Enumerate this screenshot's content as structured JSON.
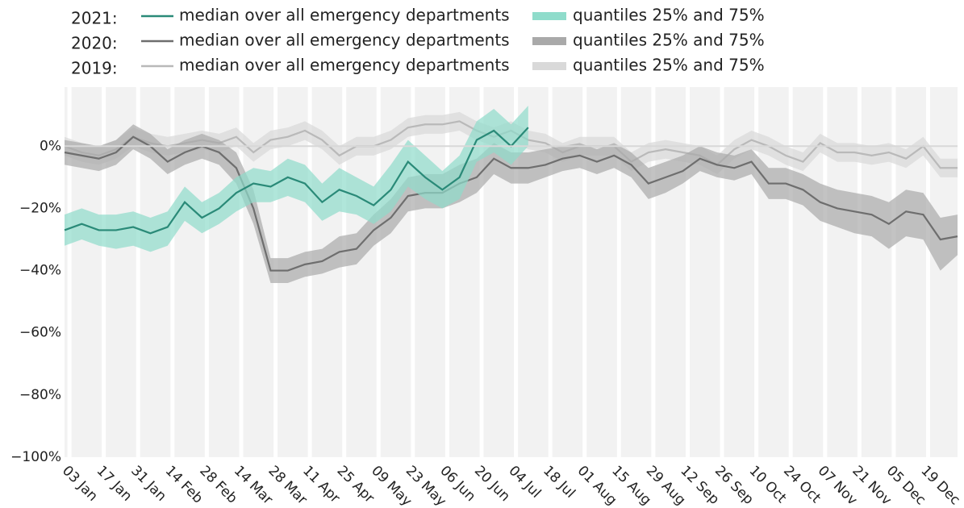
{
  "chart_data": {
    "type": "line",
    "x": [
      "01 Jan",
      "08 Jan",
      "15 Jan",
      "22 Jan",
      "29 Jan",
      "05 Feb",
      "12 Feb",
      "19 Feb",
      "26 Feb",
      "05 Mar",
      "12 Mar",
      "19 Mar",
      "26 Mar",
      "02 Apr",
      "09 Apr",
      "16 Apr",
      "23 Apr",
      "30 Apr",
      "07 May",
      "14 May",
      "21 May",
      "28 May",
      "04 Jun",
      "11 Jun",
      "18 Jun",
      "25 Jun",
      "02 Jul",
      "09 Jul",
      "16 Jul",
      "23 Jul",
      "30 Jul",
      "06 Aug",
      "13 Aug",
      "20 Aug",
      "27 Aug",
      "03 Sep",
      "10 Sep",
      "17 Sep",
      "24 Sep",
      "01 Oct",
      "08 Oct",
      "15 Oct",
      "22 Oct",
      "29 Oct",
      "05 Nov",
      "12 Nov",
      "19 Nov",
      "26 Nov",
      "03 Dec",
      "10 Dec",
      "17 Dec",
      "24 Dec",
      "31 Dec"
    ],
    "xlim": [
      "01 Jan",
      "31 Dec"
    ],
    "xticks": [
      "03 Jan",
      "17 Jan",
      "31 Jan",
      "14 Feb",
      "28 Feb",
      "14 Mar",
      "28 Mar",
      "11 Apr",
      "25 Apr",
      "09 May",
      "23 May",
      "06 Jun",
      "20 Jun",
      "04 Jul",
      "18 Jul",
      "01 Aug",
      "15 Aug",
      "29 Aug",
      "12 Sep",
      "26 Sep",
      "10 Oct",
      "24 Oct",
      "07 Nov",
      "21 Nov",
      "05 Dec",
      "19 Dec"
    ],
    "ylim": [
      -100,
      19
    ],
    "yticks": [
      {
        "value": 0,
        "label": "0%"
      },
      {
        "value": -20,
        "label": "−20%"
      },
      {
        "value": -40,
        "label": "−40%"
      },
      {
        "value": -60,
        "label": "−60%"
      },
      {
        "value": -80,
        "label": "−80%"
      },
      {
        "value": -100,
        "label": "−100%"
      }
    ],
    "grid": "x",
    "zeroline": true,
    "series": [
      {
        "group": "2021:",
        "name": "median over all emergency departments",
        "color": "#2a8a78",
        "band_name": "quantiles 25% and 75%",
        "band_color": "#8fdccb",
        "values": [
          -27,
          -25,
          -27,
          -27,
          -26,
          -28,
          -26,
          -18,
          -23,
          -20,
          -15,
          -12,
          -13,
          -10,
          -12,
          -18,
          -14,
          -16,
          -19,
          -14,
          -5,
          -10,
          -14,
          -10,
          2,
          5,
          0,
          6,
          null,
          null,
          null,
          null,
          null,
          null,
          null,
          null,
          null,
          null,
          null,
          null,
          null,
          null,
          null,
          null,
          null,
          null,
          null,
          null,
          null,
          null,
          null,
          null,
          null
        ],
        "lower": [
          -32,
          -30,
          -32,
          -33,
          -32,
          -34,
          -32,
          -24,
          -28,
          -25,
          -21,
          -18,
          -18,
          -16,
          -18,
          -24,
          -21,
          -22,
          -25,
          -21,
          -13,
          -17,
          -20,
          -17,
          -5,
          -2,
          -6,
          0,
          null,
          null,
          null,
          null,
          null,
          null,
          null,
          null,
          null,
          null,
          null,
          null,
          null,
          null,
          null,
          null,
          null,
          null,
          null,
          null,
          null,
          null,
          null,
          null,
          null
        ],
        "upper": [
          -22,
          -20,
          -22,
          -22,
          -21,
          -23,
          -21,
          -13,
          -18,
          -15,
          -10,
          -7,
          -8,
          -4,
          -6,
          -12,
          -7,
          -10,
          -13,
          -6,
          2,
          -3,
          -8,
          -3,
          8,
          12,
          7,
          13,
          null,
          null,
          null,
          null,
          null,
          null,
          null,
          null,
          null,
          null,
          null,
          null,
          null,
          null,
          null,
          null,
          null,
          null,
          null,
          null,
          null,
          null,
          null,
          null,
          null
        ]
      },
      {
        "group": "2020:",
        "name": "median over all emergency departments",
        "color": "#6e6e6e",
        "band_name": "quantiles 25% and 75%",
        "band_color": "#a9a9a9",
        "values": [
          -2,
          -3,
          -4,
          -2,
          3,
          0,
          -5,
          -2,
          0,
          -2,
          -7,
          -20,
          -40,
          -40,
          -38,
          -37,
          -34,
          -33,
          -27,
          -23,
          -16,
          -15,
          -15,
          -12,
          -10,
          -4,
          -7,
          -7,
          -6,
          -4,
          -3,
          -5,
          -3,
          -6,
          -12,
          -10,
          -8,
          -4,
          -6,
          -7,
          -5,
          -12,
          -12,
          -14,
          -18,
          -20,
          -21,
          -22,
          -25,
          -21,
          -22,
          -30,
          -29
        ],
        "lower": [
          -6,
          -7,
          -8,
          -6,
          -1,
          -4,
          -9,
          -6,
          -4,
          -6,
          -12,
          -25,
          -44,
          -44,
          -42,
          -41,
          -39,
          -38,
          -32,
          -28,
          -21,
          -20,
          -20,
          -18,
          -15,
          -9,
          -12,
          -12,
          -10,
          -8,
          -7,
          -9,
          -7,
          -10,
          -17,
          -15,
          -12,
          -8,
          -10,
          -11,
          -9,
          -17,
          -17,
          -19,
          -24,
          -26,
          -28,
          -29,
          -33,
          -29,
          -30,
          -40,
          -35
        ],
        "upper": [
          2,
          1,
          0,
          2,
          7,
          4,
          -1,
          2,
          4,
          2,
          -2,
          -14,
          -36,
          -36,
          -34,
          -33,
          -29,
          -28,
          -22,
          -17,
          -10,
          -9,
          -9,
          -6,
          -4,
          1,
          -2,
          -2,
          -1,
          0,
          1,
          -1,
          1,
          -2,
          -7,
          -5,
          -3,
          0,
          -2,
          -3,
          -1,
          -7,
          -7,
          -9,
          -12,
          -14,
          -15,
          -16,
          -18,
          -14,
          -15,
          -23,
          -22
        ]
      },
      {
        "group": "2019:",
        "name": "median over all emergency departments",
        "color": "#b9b9b9",
        "band_name": "quantiles 25% and 75%",
        "band_color": "#d9d9d9",
        "values": [
          0,
          -2,
          -3,
          -1,
          3,
          1,
          0,
          1,
          2,
          1,
          3,
          -2,
          2,
          3,
          5,
          2,
          -3,
          0,
          0,
          2,
          6,
          7,
          7,
          8,
          5,
          3,
          5,
          2,
          1,
          -2,
          0,
          0,
          0,
          -5,
          -2,
          -1,
          -2,
          -3,
          -6,
          -1,
          2,
          0,
          -3,
          -5,
          1,
          -2,
          -2,
          -3,
          -2,
          -4,
          0,
          -7,
          -7
        ],
        "lower": [
          -3,
          -5,
          -6,
          -4,
          0,
          -2,
          -3,
          -2,
          -1,
          -2,
          0,
          -5,
          -1,
          0,
          2,
          -1,
          -6,
          -3,
          -3,
          -1,
          3,
          4,
          4,
          5,
          2,
          0,
          2,
          -1,
          -2,
          -5,
          -3,
          -3,
          -3,
          -8,
          -5,
          -4,
          -5,
          -6,
          -9,
          -4,
          -1,
          -3,
          -6,
          -8,
          -2,
          -5,
          -5,
          -6,
          -5,
          -7,
          -3,
          -10,
          -10
        ],
        "upper": [
          3,
          1,
          0,
          2,
          6,
          4,
          3,
          4,
          5,
          4,
          6,
          1,
          5,
          6,
          8,
          5,
          0,
          3,
          3,
          5,
          9,
          10,
          10,
          11,
          8,
          6,
          8,
          5,
          4,
          1,
          3,
          3,
          3,
          -2,
          1,
          2,
          1,
          0,
          -3,
          2,
          5,
          3,
          0,
          -2,
          4,
          1,
          1,
          0,
          1,
          -1,
          3,
          -4,
          -4
        ]
      }
    ]
  }
}
